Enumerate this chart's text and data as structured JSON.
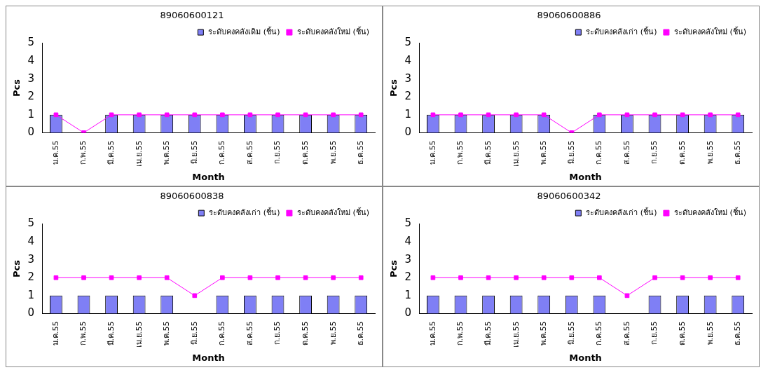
{
  "chart_data": [
    {
      "type": "bar",
      "title": "89060600121",
      "xlabel": "Month",
      "ylabel": "Pcs",
      "categories": [
        "ม.ค.55",
        "ก.พ.55",
        "มี.ค.55",
        "เม.ย.55",
        "พ.ค.55",
        "มิ.ย.55",
        "ก.ค.55",
        "ส.ค.55",
        "ก.ย.55",
        "ต.ค.55",
        "พ.ย.55",
        "ธ.ค.55"
      ],
      "series": [
        {
          "name": "ระดับคงคลังเดิม (ชิ้น)",
          "color": "#7f7ff5",
          "values": [
            1,
            0,
            1,
            1,
            1,
            1,
            1,
            1,
            1,
            1,
            1,
            1
          ]
        },
        {
          "name": "ระดับคงคลังใหม่ (ชิ้น)",
          "type": "line",
          "color": "#ff00ff",
          "values": [
            1,
            0,
            1,
            1,
            1,
            1,
            1,
            1,
            1,
            1,
            1,
            1
          ]
        }
      ],
      "ylim": [
        0,
        5
      ],
      "yticks": [
        0,
        1,
        2,
        3,
        4,
        5
      ],
      "grid": false,
      "legend": "top right",
      "marker": "square"
    },
    {
      "type": "bar",
      "title": "89060600886",
      "xlabel": "Month",
      "ylabel": "Pcs",
      "categories": [
        "ม.ค.55",
        "ก.พ.55",
        "มี.ค.55",
        "เม.ย.55",
        "พ.ค.55",
        "มิ.ย.55",
        "ก.ค.55",
        "ส.ค.55",
        "ก.ย.55",
        "ต.ค.55",
        "พ.ย.55",
        "ธ.ค.55"
      ],
      "series": [
        {
          "name": "ระดับคงคลังเก่า (ชิ้น)",
          "color": "#7f7ff5",
          "values": [
            1,
            1,
            1,
            1,
            1,
            0,
            1,
            1,
            1,
            1,
            1,
            1
          ]
        },
        {
          "name": "ระดับคงคลังใหม่ (ชิ้น)",
          "type": "line",
          "color": "#ff00ff",
          "values": [
            1,
            1,
            1,
            1,
            1,
            0,
            1,
            1,
            1,
            1,
            1,
            1
          ]
        }
      ],
      "ylim": [
        0,
        5
      ],
      "yticks": [
        0,
        1,
        2,
        3,
        4,
        5
      ],
      "grid": false,
      "legend": "top right",
      "marker": "square"
    },
    {
      "type": "bar",
      "title": "89060600838",
      "xlabel": "Month",
      "ylabel": "Pcs",
      "categories": [
        "ม.ค.55",
        "ก.พ.55",
        "มี.ค.55",
        "เม.ย.55",
        "พ.ค.55",
        "มิ.ย.55",
        "ก.ค.55",
        "ส.ค.55",
        "ก.ย.55",
        "ต.ค.55",
        "พ.ย.55",
        "ธ.ค.55"
      ],
      "series": [
        {
          "name": "ระดับคงคลังเก่า (ชิ้น)",
          "color": "#7f7ff5",
          "values": [
            1,
            1,
            1,
            1,
            1,
            0,
            1,
            1,
            1,
            1,
            1,
            1
          ]
        },
        {
          "name": "ระดับคงคลังใหม่ (ชิ้น)",
          "type": "line",
          "color": "#ff00ff",
          "values": [
            2,
            2,
            2,
            2,
            2,
            1,
            2,
            2,
            2,
            2,
            2,
            2
          ]
        }
      ],
      "ylim": [
        0,
        5
      ],
      "yticks": [
        0,
        1,
        2,
        3,
        4,
        5
      ],
      "grid": false,
      "legend": "top right",
      "marker": "square"
    },
    {
      "type": "bar",
      "title": "89060600342",
      "xlabel": "Month",
      "ylabel": "Pcs",
      "categories": [
        "ม.ค.55",
        "ก.พ.55",
        "มี.ค.55",
        "เม.ย.55",
        "พ.ค.55",
        "มิ.ย.55",
        "ก.ค.55",
        "ส.ค.55",
        "ก.ย.55",
        "ต.ค.55",
        "พ.ย.55",
        "ธ.ค.55"
      ],
      "series": [
        {
          "name": "ระดับคงคลังเก่า (ชิ้น)",
          "color": "#7f7ff5",
          "values": [
            1,
            1,
            1,
            1,
            1,
            1,
            1,
            0,
            1,
            1,
            1,
            1
          ]
        },
        {
          "name": "ระดับคงคลังใหม่ (ชิ้น)",
          "type": "line",
          "color": "#ff00ff",
          "values": [
            2,
            2,
            2,
            2,
            2,
            2,
            2,
            1,
            2,
            2,
            2,
            2
          ]
        }
      ],
      "ylim": [
        0,
        5
      ],
      "yticks": [
        0,
        1,
        2,
        3,
        4,
        5
      ],
      "grid": false,
      "legend": "top right",
      "marker": "square"
    }
  ]
}
